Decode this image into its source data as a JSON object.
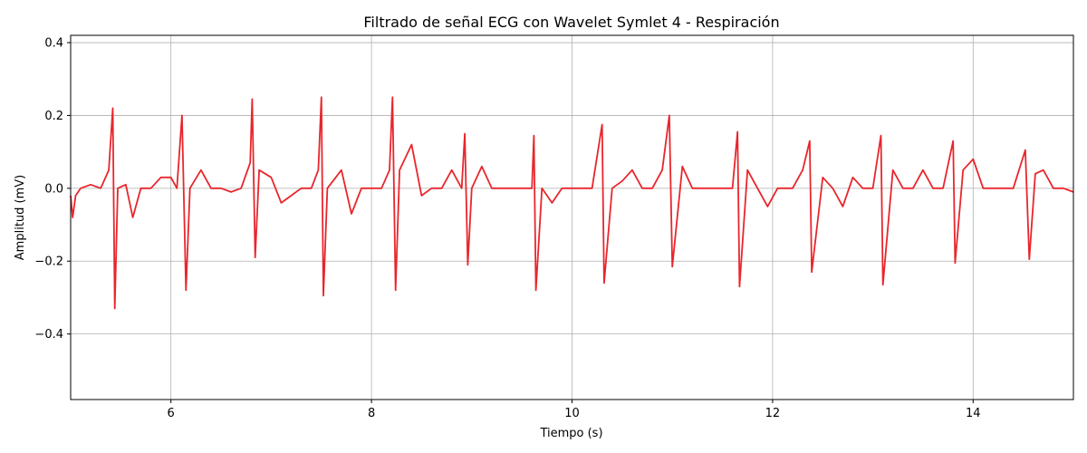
{
  "chart_data": {
    "type": "line",
    "title": "Filtrado de señal ECG con Wavelet Symlet 4 - Respiración",
    "xlabel": "Tiempo (s)",
    "ylabel": "Amplitud (mV)",
    "xlim": [
      5.0,
      15.0
    ],
    "ylim": [
      -0.58,
      0.42
    ],
    "grid": true,
    "x_ticks": [
      6,
      8,
      10,
      12,
      14
    ],
    "x_tick_labels": [
      "6",
      "8",
      "10",
      "12",
      "14"
    ],
    "y_ticks": [
      0.4,
      0.2,
      0.0,
      -0.2,
      -0.4
    ],
    "y_tick_labels": [
      "0.4",
      "0.2",
      "0.0",
      "−0.2",
      "−0.4"
    ],
    "series": [
      {
        "color": "#e8262c",
        "beats": [
          {
            "t": 5.43,
            "peak": 0.22,
            "trough": -0.33
          },
          {
            "t": 6.13,
            "peak": 0.2,
            "trough": -0.28
          },
          {
            "t": 6.82,
            "peak": 0.245,
            "trough": -0.19
          },
          {
            "t": 7.51,
            "peak": 0.25,
            "trough": -0.295
          },
          {
            "t": 8.22,
            "peak": 0.25,
            "trough": -0.28
          },
          {
            "t": 8.94,
            "peak": 0.15,
            "trough": -0.21
          },
          {
            "t": 9.63,
            "peak": 0.145,
            "trough": -0.28
          },
          {
            "t": 10.31,
            "peak": 0.175,
            "trough": -0.26
          },
          {
            "t": 10.98,
            "peak": 0.2,
            "trough": -0.215
          },
          {
            "t": 11.66,
            "peak": 0.155,
            "trough": -0.27
          },
          {
            "t": 12.38,
            "peak": 0.13,
            "trough": -0.23
          },
          {
            "t": 13.09,
            "peak": 0.145,
            "trough": -0.265
          },
          {
            "t": 13.81,
            "peak": 0.13,
            "trough": -0.205
          },
          {
            "t": 14.55,
            "peak": 0.105,
            "trough": -0.195
          }
        ],
        "points": [
          [
            5.0,
            -0.02
          ],
          [
            5.02,
            -0.08
          ],
          [
            5.05,
            -0.02
          ],
          [
            5.1,
            0.0
          ],
          [
            5.2,
            0.01
          ],
          [
            5.3,
            0.0
          ],
          [
            5.38,
            0.05
          ],
          [
            5.42,
            0.22
          ],
          [
            5.44,
            -0.33
          ],
          [
            5.47,
            0.0
          ],
          [
            5.55,
            0.01
          ],
          [
            5.62,
            -0.08
          ],
          [
            5.7,
            0.0
          ],
          [
            5.8,
            0.0
          ],
          [
            5.9,
            0.03
          ],
          [
            6.0,
            0.03
          ],
          [
            6.06,
            0.0
          ],
          [
            6.11,
            0.2
          ],
          [
            6.15,
            -0.28
          ],
          [
            6.19,
            0.0
          ],
          [
            6.3,
            0.05
          ],
          [
            6.4,
            0.0
          ],
          [
            6.5,
            0.0
          ],
          [
            6.6,
            -0.01
          ],
          [
            6.7,
            0.0
          ],
          [
            6.79,
            0.07
          ],
          [
            6.81,
            0.245
          ],
          [
            6.84,
            -0.19
          ],
          [
            6.88,
            0.05
          ],
          [
            7.0,
            0.03
          ],
          [
            7.1,
            -0.04
          ],
          [
            7.2,
            -0.02
          ],
          [
            7.3,
            0.0
          ],
          [
            7.4,
            0.0
          ],
          [
            7.47,
            0.05
          ],
          [
            7.5,
            0.25
          ],
          [
            7.52,
            -0.295
          ],
          [
            7.56,
            0.0
          ],
          [
            7.7,
            0.05
          ],
          [
            7.8,
            -0.07
          ],
          [
            7.9,
            0.0
          ],
          [
            8.0,
            0.0
          ],
          [
            8.1,
            0.0
          ],
          [
            8.18,
            0.05
          ],
          [
            8.21,
            0.25
          ],
          [
            8.24,
            -0.28
          ],
          [
            8.28,
            0.05
          ],
          [
            8.4,
            0.12
          ],
          [
            8.5,
            -0.02
          ],
          [
            8.6,
            0.0
          ],
          [
            8.7,
            0.0
          ],
          [
            8.8,
            0.05
          ],
          [
            8.9,
            0.0
          ],
          [
            8.93,
            0.15
          ],
          [
            8.96,
            -0.21
          ],
          [
            9.0,
            0.0
          ],
          [
            9.1,
            0.06
          ],
          [
            9.2,
            0.0
          ],
          [
            9.3,
            0.0
          ],
          [
            9.4,
            0.0
          ],
          [
            9.5,
            0.0
          ],
          [
            9.6,
            0.0
          ],
          [
            9.62,
            0.145
          ],
          [
            9.64,
            -0.28
          ],
          [
            9.7,
            0.0
          ],
          [
            9.8,
            -0.04
          ],
          [
            9.9,
            0.0
          ],
          [
            10.0,
            0.0
          ],
          [
            10.1,
            0.0
          ],
          [
            10.2,
            0.0
          ],
          [
            10.3,
            0.175
          ],
          [
            10.32,
            -0.26
          ],
          [
            10.4,
            0.0
          ],
          [
            10.5,
            0.02
          ],
          [
            10.6,
            0.05
          ],
          [
            10.7,
            0.0
          ],
          [
            10.8,
            0.0
          ],
          [
            10.9,
            0.05
          ],
          [
            10.97,
            0.2
          ],
          [
            11.0,
            -0.215
          ],
          [
            11.1,
            0.06
          ],
          [
            11.2,
            0.0
          ],
          [
            11.3,
            0.0
          ],
          [
            11.4,
            0.0
          ],
          [
            11.5,
            0.0
          ],
          [
            11.6,
            0.0
          ],
          [
            11.65,
            0.155
          ],
          [
            11.67,
            -0.27
          ],
          [
            11.75,
            0.05
          ],
          [
            11.85,
            0.0
          ],
          [
            11.95,
            -0.05
          ],
          [
            12.05,
            0.0
          ],
          [
            12.2,
            0.0
          ],
          [
            12.3,
            0.05
          ],
          [
            12.37,
            0.13
          ],
          [
            12.39,
            -0.23
          ],
          [
            12.5,
            0.03
          ],
          [
            12.6,
            0.0
          ],
          [
            12.7,
            -0.05
          ],
          [
            12.8,
            0.03
          ],
          [
            12.9,
            0.0
          ],
          [
            13.0,
            0.0
          ],
          [
            13.08,
            0.145
          ],
          [
            13.1,
            -0.265
          ],
          [
            13.2,
            0.05
          ],
          [
            13.3,
            0.0
          ],
          [
            13.4,
            0.0
          ],
          [
            13.5,
            0.05
          ],
          [
            13.6,
            0.0
          ],
          [
            13.7,
            0.0
          ],
          [
            13.8,
            0.13
          ],
          [
            13.82,
            -0.205
          ],
          [
            13.9,
            0.05
          ],
          [
            14.0,
            0.08
          ],
          [
            14.1,
            0.0
          ],
          [
            14.2,
            0.0
          ],
          [
            14.3,
            0.0
          ],
          [
            14.4,
            0.0
          ],
          [
            14.52,
            0.105
          ],
          [
            14.56,
            -0.195
          ],
          [
            14.62,
            0.04
          ],
          [
            14.7,
            0.05
          ],
          [
            14.8,
            0.0
          ],
          [
            14.9,
            0.0
          ],
          [
            15.0,
            -0.01
          ]
        ]
      }
    ]
  }
}
